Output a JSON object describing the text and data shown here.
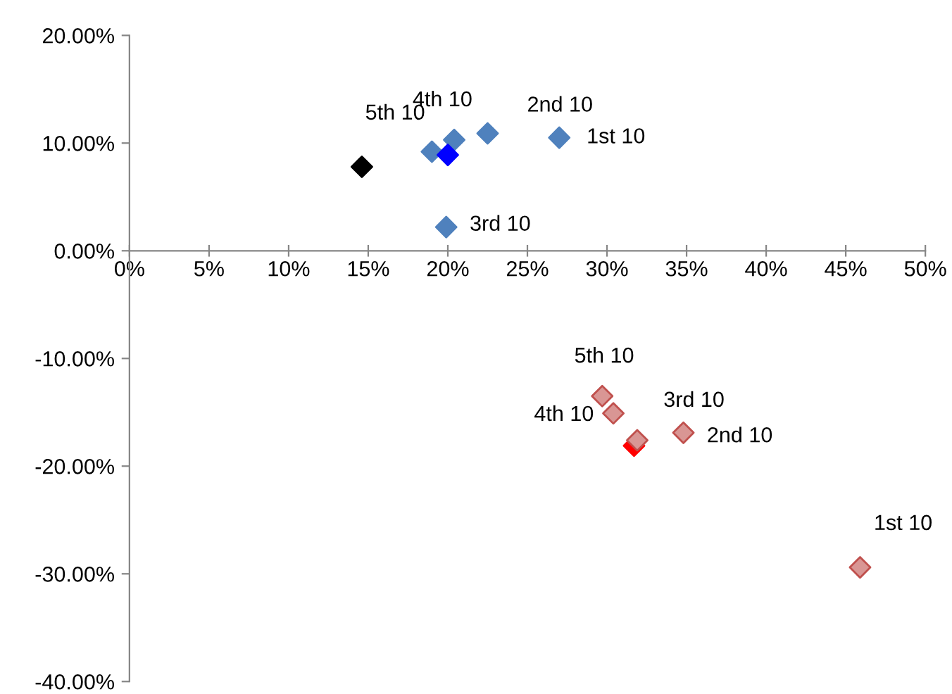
{
  "chart_data": {
    "type": "scatter",
    "marker": "diamond",
    "grid": false,
    "legend": false,
    "xlim": [
      0,
      50
    ],
    "ylim": [
      -40,
      20
    ],
    "xticks": [
      {
        "value": 0,
        "label": "0%"
      },
      {
        "value": 5,
        "label": "5%"
      },
      {
        "value": 10,
        "label": "10%"
      },
      {
        "value": 15,
        "label": "15%"
      },
      {
        "value": 20,
        "label": "20%"
      },
      {
        "value": 25,
        "label": "25%"
      },
      {
        "value": 30,
        "label": "30%"
      },
      {
        "value": 35,
        "label": "35%"
      },
      {
        "value": 40,
        "label": "40%"
      },
      {
        "value": 45,
        "label": "45%"
      },
      {
        "value": 50,
        "label": "50%"
      }
    ],
    "yticks": [
      {
        "value": -40,
        "label": "-40.00%"
      },
      {
        "value": -30,
        "label": "-30.00%"
      },
      {
        "value": -20,
        "label": "-20.00%"
      },
      {
        "value": -10,
        "label": "-10.00%"
      },
      {
        "value": 0,
        "label": "0.00%"
      },
      {
        "value": 10,
        "label": "10.00%"
      },
      {
        "value": 20,
        "label": "20.00%"
      }
    ],
    "series": [
      {
        "color": "#4f81bd",
        "x": [
          27.0,
          22.5,
          19.9,
          20.4,
          19.0
        ],
        "values": [
          10.5,
          10.9,
          2.2,
          10.3,
          9.2
        ]
      },
      {
        "color": "#000000",
        "x": [
          14.6
        ],
        "values": [
          7.8
        ]
      },
      {
        "color": "#0000ff",
        "x": [
          20.0
        ],
        "values": [
          8.9
        ]
      },
      {
        "color": "#d99694",
        "x": [
          45.9,
          34.8,
          31.9,
          30.4,
          29.7
        ],
        "values": [
          -29.4,
          -16.9,
          -17.6,
          -15.1,
          -13.5
        ]
      },
      {
        "color": "#ff0000",
        "x": [
          31.7
        ],
        "values": [
          -18.1
        ]
      }
    ],
    "annotations": [
      {
        "text": "1st 10",
        "x": 27.0,
        "y": 10.5
      },
      {
        "text": "2nd 10",
        "x": 22.5,
        "y": 10.9
      },
      {
        "text": "3rd 10",
        "x": 19.9,
        "y": 2.2
      },
      {
        "text": "4th 10",
        "x": 20.4,
        "y": 10.3
      },
      {
        "text": "5th 10",
        "x": 14.6,
        "y": 7.8
      },
      {
        "text": "1st 10",
        "x": 45.9,
        "y": -29.4
      },
      {
        "text": "2nd 10",
        "x": 34.8,
        "y": -16.9
      },
      {
        "text": "3rd 10",
        "x": 31.9,
        "y": -17.6
      },
      {
        "text": "4th 10",
        "x": 30.4,
        "y": -15.1
      },
      {
        "text": "5th 10",
        "x": 29.7,
        "y": -13.5
      }
    ]
  }
}
